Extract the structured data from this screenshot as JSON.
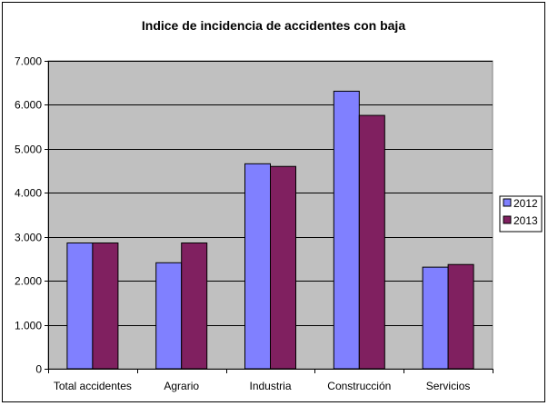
{
  "chart_data": {
    "type": "bar",
    "title": "Indice de incidencia de accidentes con baja",
    "xlabel": "",
    "ylabel": "",
    "categories": [
      "Total accidentes",
      "Agrario",
      "Industria",
      "Construcción",
      "Servicios"
    ],
    "series": [
      {
        "name": "2012",
        "color": "#8080ff",
        "values": [
          2860,
          2410,
          4660,
          6310,
          2310
        ]
      },
      {
        "name": "2013",
        "color": "#802060",
        "values": [
          2860,
          2860,
          4600,
          5760,
          2370
        ]
      }
    ],
    "ylim": [
      0,
      7000
    ],
    "yticks": [
      0,
      1000,
      2000,
      3000,
      4000,
      5000,
      6000,
      7000
    ],
    "ytick_labels": [
      "0",
      "1.000",
      "2.000",
      "3.000",
      "4.000",
      "5.000",
      "6.000",
      "7.000"
    ],
    "grid": true,
    "plot_background": "#c0c0c0",
    "legend_position": "right"
  }
}
